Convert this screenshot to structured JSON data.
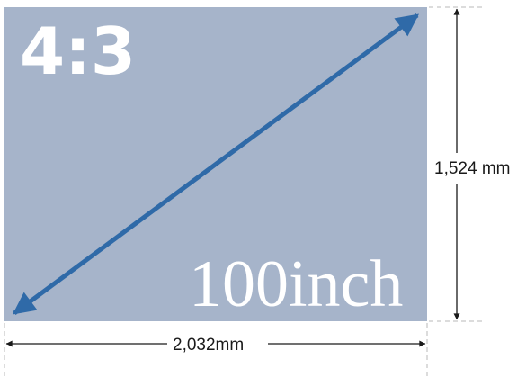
{
  "screen": {
    "aspect_ratio_label": "4:3",
    "diagonal_label": "100inch",
    "fill_color": "#a6b4ca",
    "diagonal_color": "#2f6aa8"
  },
  "dimensions": {
    "width_label": "2,032mm",
    "height_label": "1,524 mm"
  }
}
